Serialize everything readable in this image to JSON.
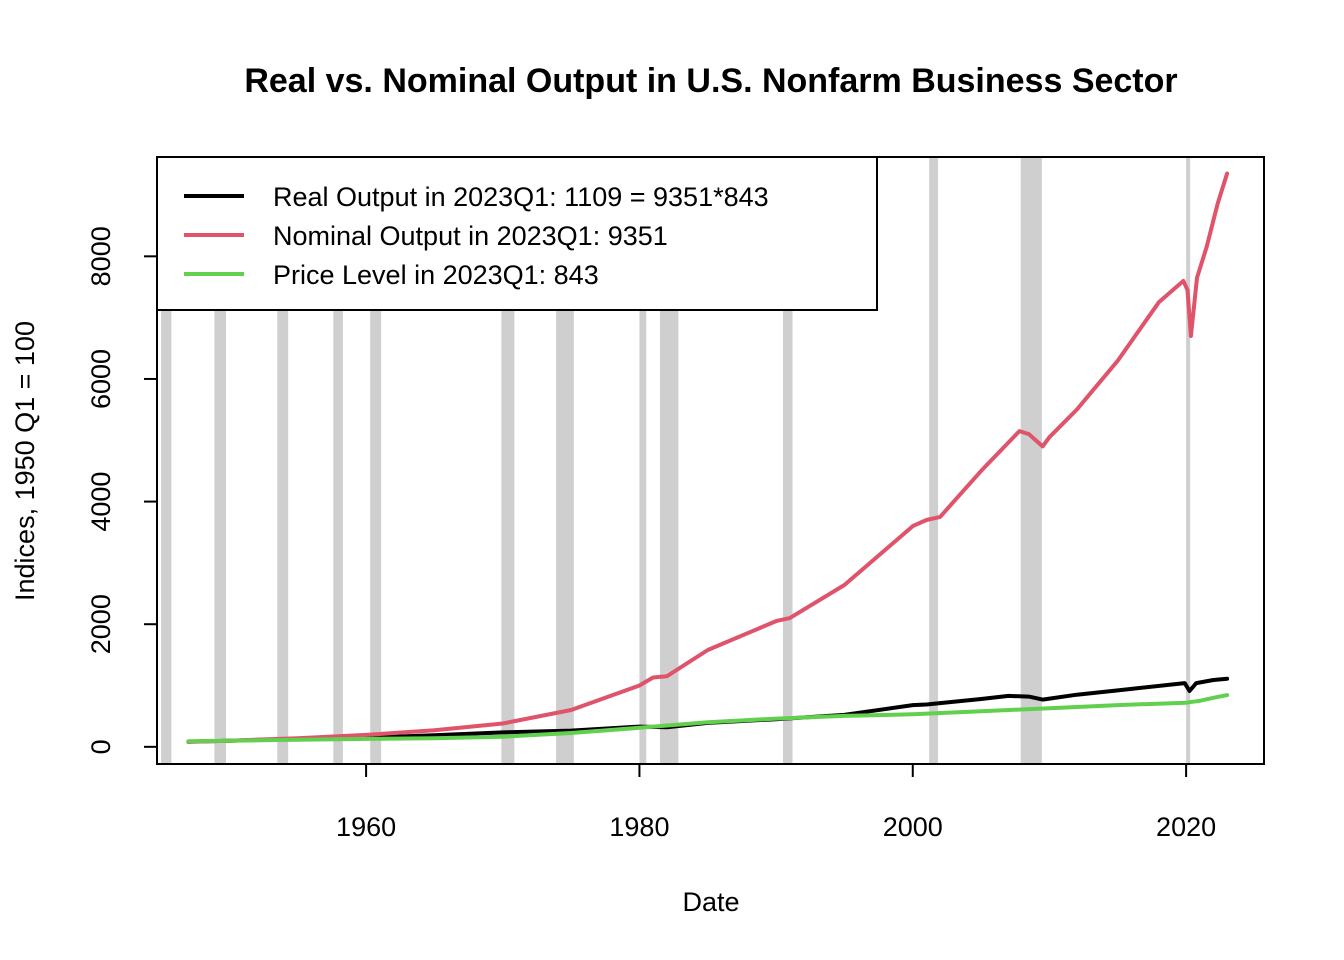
{
  "chart_data": {
    "type": "line",
    "title": "Real vs. Nominal Output in U.S. Nonfarm Business Sector",
    "xlabel": "Date",
    "ylabel": "Indices, 1950 Q1 = 100",
    "xlim": [
      1944.7,
      2025.7
    ],
    "ylim": [
      -280,
      9620
    ],
    "x_ticks": [
      1960,
      1980,
      2000,
      2020
    ],
    "x_tick_labels": [
      "1960",
      "1980",
      "2000",
      "2020"
    ],
    "y_ticks": [
      0,
      2000,
      4000,
      6000,
      8000
    ],
    "y_tick_labels": [
      "0",
      "2000",
      "4000",
      "6000",
      "8000"
    ],
    "grid": false,
    "legend_position": "top-left",
    "recessions": [
      [
        1945.0,
        1945.75
      ],
      [
        1948.9,
        1949.75
      ],
      [
        1953.5,
        1954.3
      ],
      [
        1957.6,
        1958.3
      ],
      [
        1960.3,
        1961.1
      ],
      [
        1969.9,
        1970.85
      ],
      [
        1973.9,
        1975.2
      ],
      [
        1980.0,
        1980.5
      ],
      [
        1981.5,
        1982.85
      ],
      [
        1990.5,
        1991.2
      ],
      [
        2001.2,
        2001.85
      ],
      [
        2007.9,
        2009.45
      ],
      [
        2020.0,
        2020.3
      ]
    ],
    "series": [
      {
        "name": "Real Output in 2023Q1: 1109 = 9351*843",
        "color": "#000000",
        "x": [
          1947,
          1950,
          1955,
          1960,
          1965,
          1970,
          1975,
          1980,
          1982,
          1985,
          1990,
          1995,
          2000,
          2001,
          2005,
          2007,
          2008.5,
          2009.5,
          2012,
          2015,
          2019.9,
          2020.25,
          2020.75,
          2022,
          2023
        ],
        "y": [
          85,
          100,
          130,
          150,
          190,
          235,
          265,
          330,
          320,
          390,
          450,
          520,
          680,
          690,
          780,
          830,
          820,
          770,
          850,
          920,
          1040,
          910,
          1040,
          1090,
          1109
        ]
      },
      {
        "name": "Nominal Output in 2023Q1: 9351",
        "color": "#DF536B",
        "x": [
          1947,
          1950,
          1955,
          1960,
          1965,
          1970,
          1975,
          1980,
          1981,
          1982,
          1985,
          1990,
          1991,
          1995,
          2000,
          2001,
          2002,
          2005,
          2007.8,
          2008.5,
          2009.5,
          2010,
          2012,
          2015,
          2018,
          2019.8,
          2020.1,
          2020.35,
          2020.8,
          2021.5,
          2022.3,
          2023
        ],
        "y": [
          80,
          100,
          140,
          195,
          270,
          380,
          600,
          1000,
          1130,
          1150,
          1580,
          2050,
          2100,
          2640,
          3600,
          3700,
          3750,
          4500,
          5150,
          5100,
          4900,
          5050,
          5500,
          6300,
          7250,
          7600,
          7450,
          6700,
          7650,
          8150,
          8850,
          9351
        ]
      },
      {
        "name": "Price Level in 2023Q1: 843",
        "color": "#61D04F",
        "x": [
          1947,
          1950,
          1955,
          1960,
          1965,
          1970,
          1975,
          1980,
          1985,
          1990,
          1995,
          2000,
          2005,
          2010,
          2015,
          2020,
          2021,
          2022,
          2023
        ],
        "y": [
          90,
          100,
          115,
          130,
          140,
          165,
          225,
          310,
          400,
          460,
          505,
          530,
          580,
          630,
          680,
          720,
          750,
          800,
          843
        ]
      }
    ]
  }
}
